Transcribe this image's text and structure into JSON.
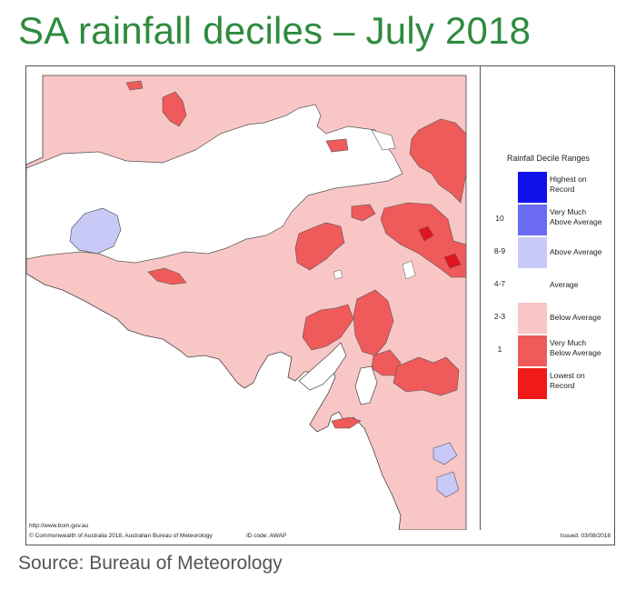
{
  "title": "SA rainfall deciles – July 2018",
  "source_caption": "Source: Bureau of Meteorology",
  "map": {
    "region": "South Australia",
    "footer_url": "http://www.bom.gov.au",
    "copyright": "© Commonwealth of Australia 2018, Australian Bureau of Meteorology",
    "id_code": "ID code: AWAP",
    "issued": "Issued: 03/08/2018",
    "background_category": "Below Average",
    "colors": {
      "highest_on_record": "#1010e8",
      "very_much_above_average": "#6a6af2",
      "above_average": "#c9c9f8",
      "average": "#ffffff",
      "below_average": "#f9c6c6",
      "very_much_below_average": "#ef5a5a",
      "lowest_on_record": "#f01a1a",
      "ocean": "#ffffff"
    }
  },
  "legend": {
    "title": "Rainfall Decile Ranges",
    "items": [
      {
        "decile": "",
        "label_line1": "Highest on",
        "label_line2": "Record",
        "color": "#1010e8"
      },
      {
        "decile": "10",
        "label_line1": "Very Much",
        "label_line2": "Above Average",
        "color": "#6a6af2"
      },
      {
        "decile": "8-9",
        "label_line1": "Above Average",
        "label_line2": "",
        "color": "#c9c9f8"
      },
      {
        "decile": "4-7",
        "label_line1": "Average",
        "label_line2": "",
        "color": "#ffffff"
      },
      {
        "decile": "2-3",
        "label_line1": "Below Average",
        "label_line2": "",
        "color": "#f9c6c6"
      },
      {
        "decile": "1",
        "label_line1": "Very Much",
        "label_line2": "Below Average",
        "color": "#ef5a5a"
      },
      {
        "decile": "",
        "label_line1": "Lowest on",
        "label_line2": "Record",
        "color": "#f01a1a"
      }
    ]
  }
}
